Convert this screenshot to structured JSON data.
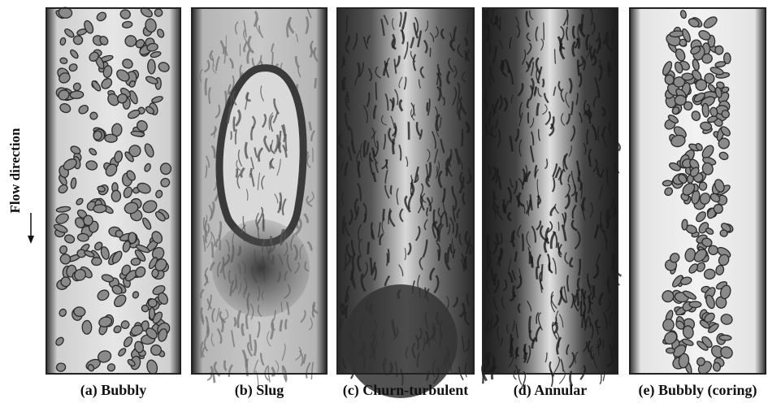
{
  "figure": {
    "axis_label": "Flow direction",
    "panels": [
      {
        "caption": "(a) Bubbly"
      },
      {
        "caption": "(b) Slug"
      },
      {
        "caption": "(c) Churn-turbulent"
      },
      {
        "caption": "(d) Annular"
      },
      {
        "caption": "(e) Bubbly (coring)"
      }
    ]
  }
}
